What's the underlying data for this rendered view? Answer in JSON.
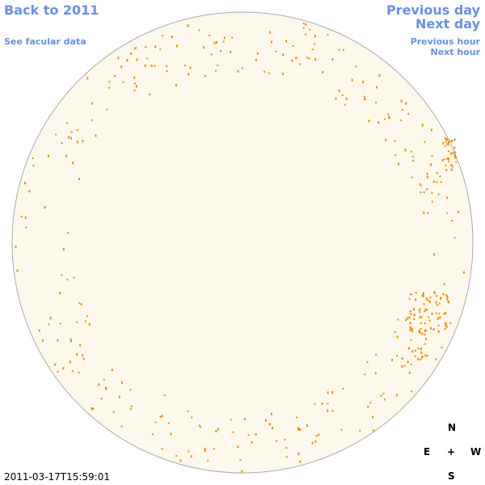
{
  "navigation": {
    "back": "Back to 2011",
    "facular_data": "See facular data",
    "previous_day": "Previous day",
    "next_day": "Next day",
    "previous_hour": "Previous hour",
    "next_hour": "Next hour"
  },
  "compass": {
    "north": "N",
    "east": "E",
    "center": "+",
    "west": "W",
    "south": "S"
  },
  "timestamp": "2011-03-17T15:59:01"
}
